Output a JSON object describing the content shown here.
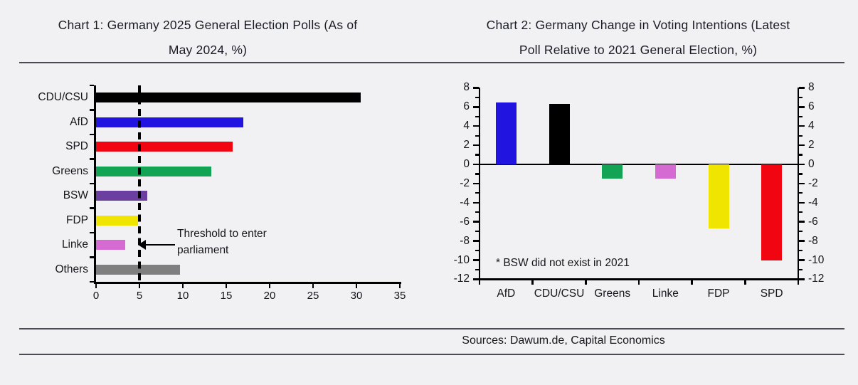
{
  "page": {
    "background": "#f1f1f3",
    "text_color": "#1b1b26"
  },
  "header": {
    "chart1_title_lines": [
      "Chart 1: Germany 2025 General Election Polls (As of",
      "May 2024, %)"
    ],
    "chart2_title_lines": [
      "Chart 2: Germany Change in Voting Intentions (Latest",
      "Poll Relative to 2021 General Election, %)"
    ]
  },
  "footer": {
    "sources": "Sources: Dawum.de, Capital Economics"
  },
  "chart_data": [
    {
      "id": "germany-2025-polls",
      "type": "bar",
      "orientation": "horizontal",
      "title": "Chart 1: Germany 2025 General Election Polls (As of May 2024, %)",
      "categories": [
        "CDU/CSU",
        "AfD",
        "SPD",
        "Greens",
        "BSW",
        "FDP",
        "Linke",
        "Others"
      ],
      "values": [
        30.5,
        17,
        15.7,
        13.3,
        5.9,
        4.8,
        3.4,
        9.7
      ],
      "colors": [
        "#000000",
        "#2214e0",
        "#f00511",
        "#12a355",
        "#6b3fa0",
        "#f0e500",
        "#d56ad2",
        "#7f7f7f"
      ],
      "xlim": [
        0,
        35
      ],
      "xticks": [
        0,
        5,
        10,
        15,
        20,
        25,
        30,
        35
      ],
      "grid": false,
      "threshold": {
        "value": 5,
        "label_lines": [
          "Threshold to enter",
          "parliament"
        ]
      }
    },
    {
      "id": "germany-voting-intention-change",
      "type": "bar",
      "orientation": "vertical",
      "title": "Chart 2: Germany Change in Voting Intentions (Latest Poll Relative to 2021 General Election, %)",
      "categories": [
        "AfD",
        "CDU/CSU",
        "Greens",
        "Linke",
        "FDP",
        "SPD"
      ],
      "values": [
        6.5,
        6.3,
        -1.5,
        -1.5,
        -6.7,
        -10
      ],
      "colors": [
        "#2214e0",
        "#000000",
        "#12a355",
        "#d56ad2",
        "#f0e500",
        "#f00511"
      ],
      "ylim": [
        -12,
        8
      ],
      "yticks_major": [
        8,
        6,
        4,
        2,
        0,
        -2,
        -4,
        -6,
        -8,
        -10,
        -12
      ],
      "yticks_minor": [
        7,
        5,
        3,
        1,
        -1,
        -3,
        -5,
        -7,
        -9,
        -11
      ],
      "grid": false,
      "zero_line": true,
      "footnote": "* BSW did not exist in 2021"
    }
  ]
}
